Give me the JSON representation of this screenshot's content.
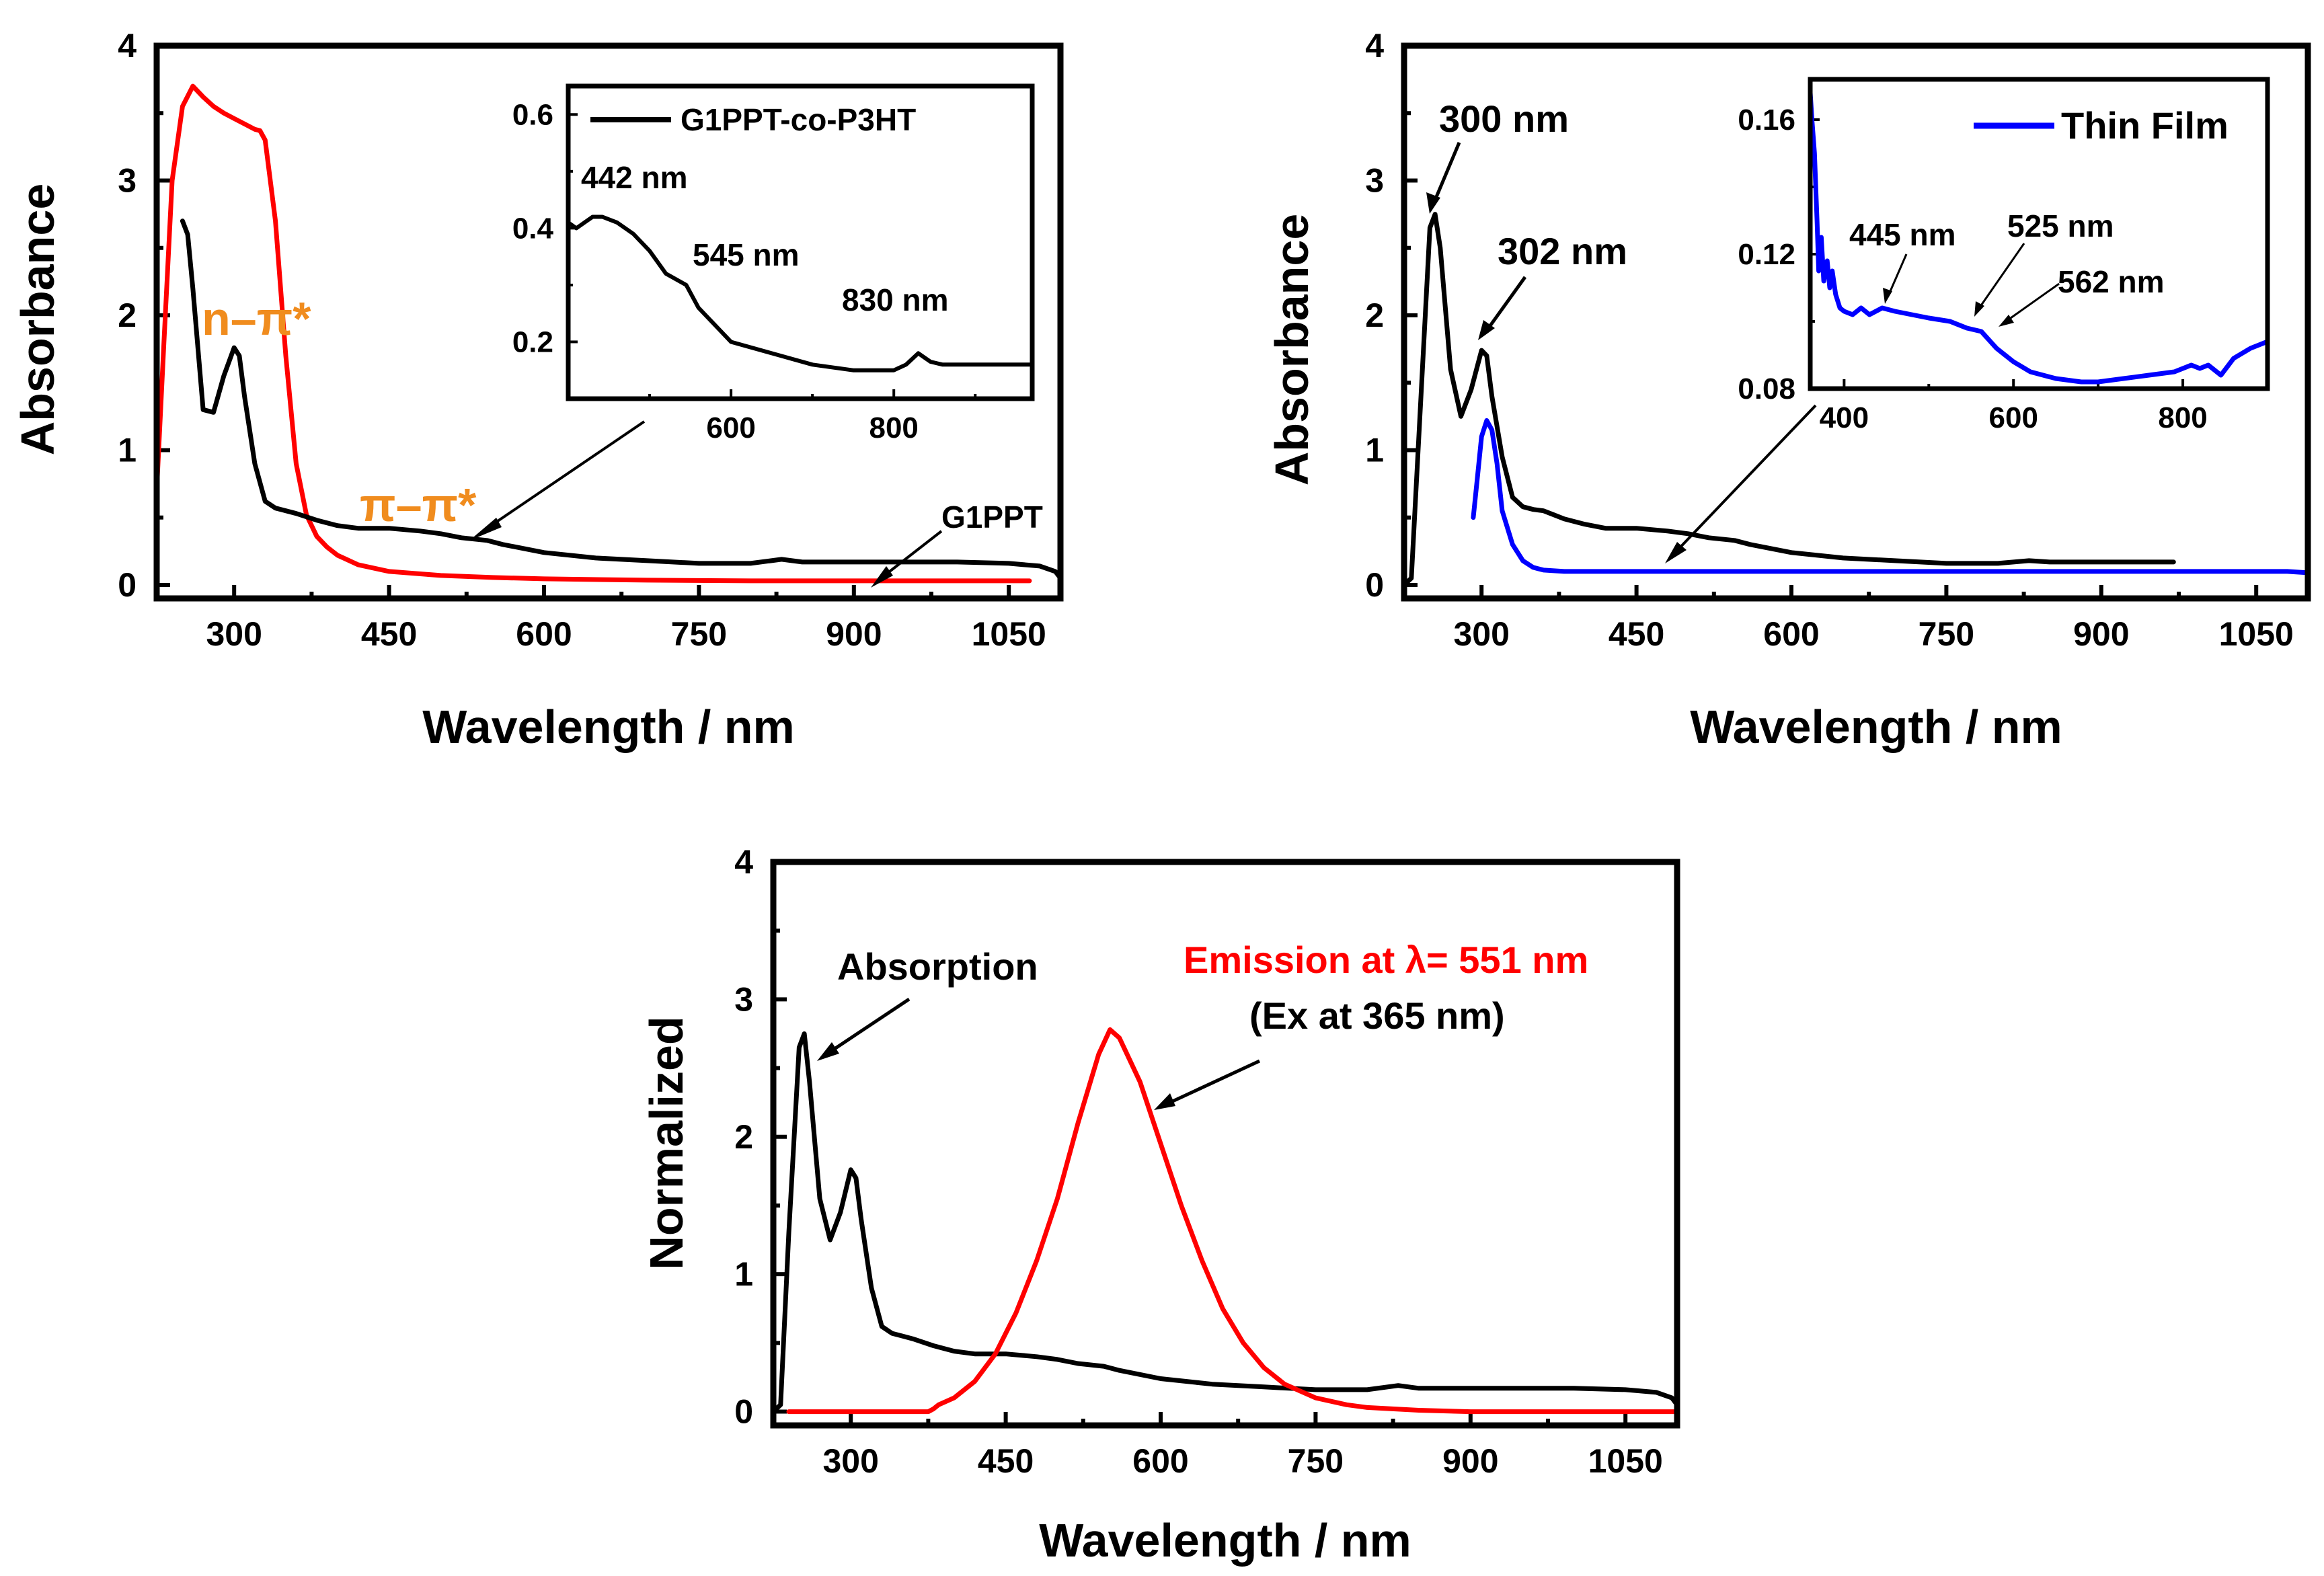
{
  "colors": {
    "black": "#000000",
    "red": "#ff0000",
    "blue": "#0000ff",
    "orange": "#f08c1e"
  },
  "chart_data": [
    {
      "id": "panel-top-left",
      "type": "line",
      "xlabel": "Wavelength / nm",
      "ylabel": "Absorbance",
      "xlim": [
        225,
        1100
      ],
      "ylim": [
        -0.1,
        4
      ],
      "xticks": [
        300,
        450,
        600,
        750,
        900,
        1050
      ],
      "yticks": [
        0,
        1,
        2,
        3,
        4
      ],
      "series": [
        {
          "name": "",
          "color": "#ff0000",
          "x": [
            225,
            232,
            240,
            250,
            260,
            270,
            280,
            290,
            300,
            310,
            320,
            325,
            330,
            340,
            350,
            360,
            370,
            380,
            390,
            400,
            420,
            450,
            500,
            550,
            600,
            700,
            800,
            900,
            1000,
            1070
          ],
          "y": [
            0.7,
            1.8,
            3.0,
            3.55,
            3.7,
            3.62,
            3.55,
            3.5,
            3.46,
            3.42,
            3.38,
            3.37,
            3.3,
            2.7,
            1.7,
            0.9,
            0.52,
            0.36,
            0.28,
            0.22,
            0.15,
            0.1,
            0.07,
            0.055,
            0.045,
            0.035,
            0.03,
            0.03,
            0.03,
            0.03
          ]
        },
        {
          "name": "G1PPT",
          "color": "#000000",
          "x": [
            250,
            255,
            260,
            270,
            280,
            290,
            300,
            305,
            310,
            320,
            330,
            340,
            350,
            360,
            380,
            400,
            420,
            450,
            480,
            500,
            520,
            545,
            560,
            600,
            650,
            700,
            750,
            800,
            830,
            850,
            900,
            950,
            1000,
            1050,
            1080,
            1095,
            1100
          ],
          "y": [
            2.7,
            2.6,
            2.2,
            1.3,
            1.28,
            1.55,
            1.76,
            1.7,
            1.4,
            0.9,
            0.62,
            0.57,
            0.55,
            0.53,
            0.48,
            0.44,
            0.42,
            0.42,
            0.4,
            0.38,
            0.35,
            0.33,
            0.3,
            0.24,
            0.2,
            0.18,
            0.16,
            0.16,
            0.19,
            0.17,
            0.17,
            0.17,
            0.17,
            0.16,
            0.14,
            0.1,
            0.05
          ]
        }
      ],
      "annotations": [
        "n–π*",
        "π–π*",
        "G1PPT"
      ],
      "inset": {
        "type": "line",
        "xlim": [
          400,
          970
        ],
        "ylim": [
          0.1,
          0.65
        ],
        "xticks": [
          600,
          800
        ],
        "yticks": [
          0.2,
          0.4,
          0.6
        ],
        "legend": "G1PPT-co-P3HT",
        "series": [
          {
            "name": "G1PPT-co-P3HT",
            "color": "#000000",
            "x": [
              400,
              410,
              420,
              430,
              442,
              460,
              480,
              500,
              520,
              545,
              560,
              580,
              600,
              650,
              700,
              750,
              780,
              800,
              815,
              830,
              845,
              860,
              900,
              970
            ],
            "y": [
              0.41,
              0.4,
              0.41,
              0.42,
              0.42,
              0.41,
              0.39,
              0.36,
              0.32,
              0.3,
              0.26,
              0.23,
              0.2,
              0.18,
              0.16,
              0.15,
              0.15,
              0.15,
              0.16,
              0.18,
              0.165,
              0.16,
              0.16,
              0.16
            ]
          }
        ],
        "annotations": [
          "442 nm",
          "545 nm",
          "830 nm"
        ]
      }
    },
    {
      "id": "panel-top-right",
      "type": "line",
      "xlabel": "Wavelength / nm",
      "ylabel": "Absorbance",
      "xlim": [
        225,
        1100
      ],
      "ylim": [
        -0.1,
        4
      ],
      "xticks": [
        300,
        450,
        600,
        750,
        900,
        1050
      ],
      "yticks": [
        0,
        1,
        2,
        3,
        4
      ],
      "series": [
        {
          "name": "",
          "color": "#000000",
          "x": [
            225,
            232,
            240,
            250,
            255,
            260,
            270,
            280,
            290,
            300,
            305,
            310,
            320,
            330,
            340,
            350,
            360,
            380,
            400,
            420,
            450,
            480,
            500,
            520,
            545,
            560,
            600,
            650,
            700,
            750,
            800,
            830,
            850,
            900,
            970
          ],
          "y": [
            0.0,
            0.05,
            1.2,
            2.65,
            2.75,
            2.5,
            1.6,
            1.25,
            1.45,
            1.74,
            1.7,
            1.4,
            0.95,
            0.65,
            0.58,
            0.56,
            0.55,
            0.49,
            0.45,
            0.42,
            0.42,
            0.4,
            0.38,
            0.35,
            0.33,
            0.3,
            0.24,
            0.2,
            0.18,
            0.16,
            0.16,
            0.18,
            0.17,
            0.17,
            0.17
          ]
        },
        {
          "name": "Thin Film",
          "color": "#0000ff",
          "x": [
            292,
            296,
            300,
            305,
            310,
            315,
            320,
            330,
            340,
            350,
            360,
            380,
            400,
            450,
            500,
            600,
            700,
            800,
            900,
            1000,
            1050,
            1080,
            1100
          ],
          "y": [
            0.5,
            0.8,
            1.1,
            1.22,
            1.15,
            0.9,
            0.55,
            0.3,
            0.18,
            0.13,
            0.11,
            0.1,
            0.1,
            0.1,
            0.1,
            0.1,
            0.1,
            0.1,
            0.1,
            0.1,
            0.1,
            0.1,
            0.09
          ]
        }
      ],
      "annotations": [
        "300 nm",
        "302 nm"
      ],
      "inset": {
        "type": "line",
        "xlim": [
          360,
          900
        ],
        "ylim": [
          0.08,
          0.172
        ],
        "xticks": [
          400,
          600,
          800
        ],
        "yticks": [
          0.08,
          0.12,
          0.16
        ],
        "legend": "Thin Film",
        "series": [
          {
            "name": "Thin Film",
            "color": "#0000ff",
            "x": [
              360,
              362,
              365,
              368,
              370,
              373,
              376,
              380,
              383,
              386,
              390,
              395,
              400,
              410,
              420,
              430,
              445,
              460,
              480,
              500,
              525,
              545,
              562,
              580,
              600,
              620,
              650,
              680,
              700,
              730,
              760,
              790,
              810,
              820,
              830,
              845,
              860,
              880,
              900
            ],
            "y": [
              0.168,
              0.16,
              0.15,
              0.13,
              0.115,
              0.125,
              0.112,
              0.118,
              0.11,
              0.115,
              0.108,
              0.104,
              0.103,
              0.102,
              0.104,
              0.102,
              0.104,
              0.103,
              0.102,
              0.101,
              0.1,
              0.098,
              0.097,
              0.092,
              0.088,
              0.085,
              0.083,
              0.082,
              0.082,
              0.083,
              0.084,
              0.085,
              0.087,
              0.086,
              0.087,
              0.084,
              0.089,
              0.092,
              0.094
            ]
          }
        ],
        "annotations": [
          "445 nm",
          "525 nm",
          "562 nm"
        ]
      }
    },
    {
      "id": "panel-bottom",
      "type": "line",
      "xlabel": "Wavelength / nm",
      "ylabel": "Normalized",
      "xlim": [
        225,
        1100
      ],
      "ylim": [
        -0.1,
        4
      ],
      "xticks": [
        300,
        450,
        600,
        750,
        900,
        1050
      ],
      "yticks": [
        0,
        1,
        2,
        3,
        4
      ],
      "series": [
        {
          "name": "Absorption",
          "color": "#000000",
          "x": [
            225,
            232,
            240,
            250,
            255,
            260,
            270,
            280,
            290,
            300,
            305,
            310,
            320,
            330,
            340,
            350,
            360,
            380,
            400,
            420,
            450,
            480,
            500,
            520,
            545,
            560,
            600,
            650,
            700,
            750,
            800,
            830,
            850,
            900,
            950,
            1000,
            1050,
            1080,
            1095,
            1100
          ],
          "y": [
            0.0,
            0.05,
            1.3,
            2.65,
            2.75,
            2.4,
            1.55,
            1.25,
            1.45,
            1.76,
            1.7,
            1.4,
            0.9,
            0.62,
            0.57,
            0.55,
            0.53,
            0.48,
            0.44,
            0.42,
            0.42,
            0.4,
            0.38,
            0.35,
            0.33,
            0.3,
            0.24,
            0.2,
            0.18,
            0.16,
            0.16,
            0.19,
            0.17,
            0.17,
            0.17,
            0.17,
            0.16,
            0.14,
            0.1,
            0.05
          ]
        },
        {
          "name": "Emission at λ= 551 nm",
          "color": "#ff0000",
          "x": [
            240,
            300,
            350,
            375,
            380,
            385,
            400,
            420,
            440,
            460,
            480,
            500,
            520,
            540,
            551,
            560,
            580,
            600,
            620,
            640,
            660,
            680,
            700,
            720,
            750,
            780,
            800,
            850,
            900,
            1000,
            1100
          ],
          "y": [
            0.0,
            0.0,
            0.0,
            0.0,
            0.02,
            0.05,
            0.1,
            0.22,
            0.42,
            0.72,
            1.1,
            1.55,
            2.1,
            2.6,
            2.78,
            2.72,
            2.4,
            1.95,
            1.5,
            1.1,
            0.75,
            0.5,
            0.32,
            0.2,
            0.1,
            0.05,
            0.03,
            0.01,
            0.0,
            0.0,
            0.0
          ]
        }
      ],
      "annotations": [
        "Absorption",
        "Emission at λ= 551 nm",
        "(Ex at 365 nm)"
      ]
    }
  ]
}
